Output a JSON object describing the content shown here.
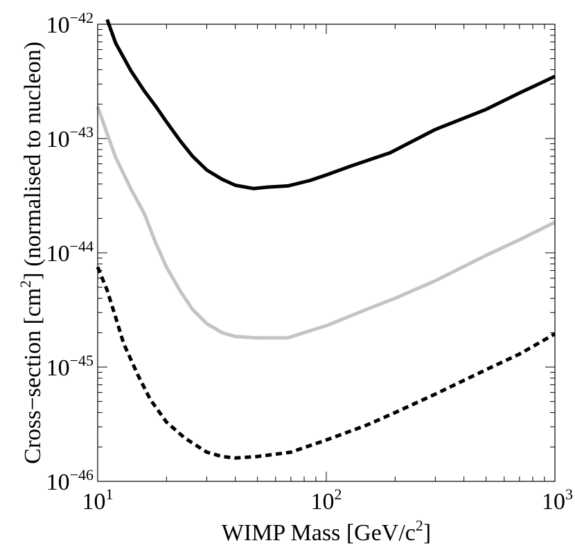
{
  "chart_data": {
    "type": "line",
    "title": "",
    "x_scale": "log",
    "y_scale": "log",
    "xlim": [
      10,
      1000
    ],
    "ylim": [
      1e-46,
      1e-42
    ],
    "xlabel": {
      "prefix": "WIMP Mass [GeV/c",
      "superscript": "2",
      "suffix": "]"
    },
    "ylabel": {
      "prefix": "Cross−section [cm",
      "superscript": "2",
      "suffix": "] (normalised to nucleon)"
    },
    "x_ticks": [
      {
        "value": 10,
        "base": "10",
        "exp": "1"
      },
      {
        "value": 100,
        "base": "10",
        "exp": "2"
      },
      {
        "value": 1000,
        "base": "10",
        "exp": "3"
      }
    ],
    "y_ticks": [
      {
        "value": 1e-42,
        "base": "10",
        "exp": "−42"
      },
      {
        "value": 1e-43,
        "base": "10",
        "exp": "−43"
      },
      {
        "value": 1e-44,
        "base": "10",
        "exp": "−44"
      },
      {
        "value": 1e-45,
        "base": "10",
        "exp": "−45"
      },
      {
        "value": 1e-46,
        "base": "10",
        "exp": "−46"
      }
    ],
    "series": [
      {
        "name": "limit-black-solid",
        "color": "#000000",
        "style": "solid",
        "points": [
          [
            11,
            1.1e-42
          ],
          [
            12,
            6.8e-43
          ],
          [
            14,
            3.9e-43
          ],
          [
            16,
            2.6e-43
          ],
          [
            18,
            1.9e-43
          ],
          [
            20,
            1.4e-43
          ],
          [
            23,
            9.5e-44
          ],
          [
            26,
            7e-44
          ],
          [
            30,
            5.3e-44
          ],
          [
            35,
            4.4e-44
          ],
          [
            40,
            3.9e-44
          ],
          [
            48,
            3.65e-44
          ],
          [
            55,
            3.75e-44
          ],
          [
            68,
            3.85e-44
          ],
          [
            85,
            4.3e-44
          ],
          [
            100,
            4.8e-44
          ],
          [
            130,
            5.8e-44
          ],
          [
            190,
            7.5e-44
          ],
          [
            300,
            1.2e-43
          ],
          [
            500,
            1.8e-43
          ],
          [
            700,
            2.5e-43
          ],
          [
            1000,
            3.5e-43
          ]
        ]
      },
      {
        "name": "limit-gray-solid",
        "color": "#c4c4c4",
        "style": "solid",
        "points": [
          [
            10,
            1.9e-43
          ],
          [
            11,
            1.1e-43
          ],
          [
            12,
            6.8e-44
          ],
          [
            14,
            3.6e-44
          ],
          [
            16,
            2.2e-44
          ],
          [
            18,
            1.2e-44
          ],
          [
            20,
            7.5e-45
          ],
          [
            23,
            4.6e-45
          ],
          [
            26,
            3.2e-45
          ],
          [
            30,
            2.4e-45
          ],
          [
            35,
            2e-45
          ],
          [
            40,
            1.85e-45
          ],
          [
            50,
            1.8e-45
          ],
          [
            68,
            1.8e-45
          ],
          [
            80,
            2e-45
          ],
          [
            100,
            2.3e-45
          ],
          [
            150,
            3.2e-45
          ],
          [
            200,
            4e-45
          ],
          [
            300,
            5.7e-45
          ],
          [
            500,
            9.5e-45
          ],
          [
            700,
            1.3e-44
          ],
          [
            1000,
            1.85e-44
          ]
        ]
      },
      {
        "name": "limit-black-dashed",
        "color": "#000000",
        "style": "dashed",
        "points": [
          [
            10,
            7.5e-45
          ],
          [
            11,
            4.7e-45
          ],
          [
            12,
            2.7e-45
          ],
          [
            13,
            1.6e-45
          ],
          [
            15,
            8.5e-46
          ],
          [
            17,
            5.2e-46
          ],
          [
            20,
            3.3e-46
          ],
          [
            24,
            2.4e-46
          ],
          [
            30,
            1.8e-46
          ],
          [
            35,
            1.65e-46
          ],
          [
            40,
            1.6e-46
          ],
          [
            50,
            1.65e-46
          ],
          [
            70,
            1.8e-46
          ],
          [
            100,
            2.3e-46
          ],
          [
            150,
            3.1e-46
          ],
          [
            200,
            4e-46
          ],
          [
            300,
            5.8e-46
          ],
          [
            500,
            9.5e-46
          ],
          [
            700,
            1.3e-45
          ],
          [
            1000,
            1.95e-45
          ]
        ]
      }
    ]
  }
}
